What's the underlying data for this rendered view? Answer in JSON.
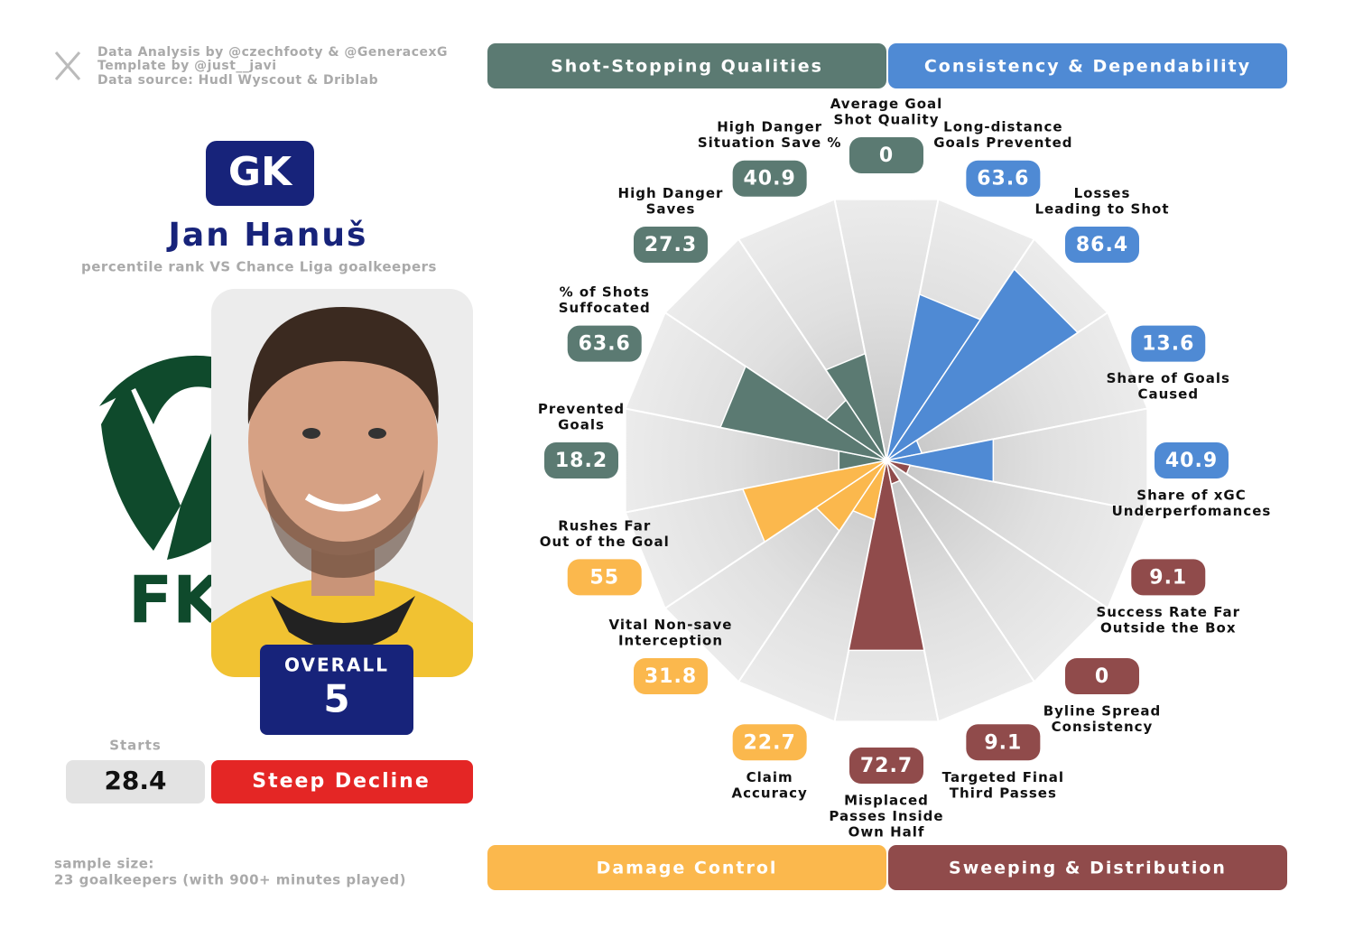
{
  "credits": [
    "Data Analysis by @czechfooty & @GeneracexG",
    "Template by @just__javi",
    "Data source: Hudl Wyscout & Driblab"
  ],
  "player": {
    "position": "GK",
    "name": "Jan Hanuš",
    "subtitle": "percentile rank VS Chance Liga goalkeepers",
    "team_logo": "FK",
    "overall_label": "OVERALL",
    "overall": 5,
    "starts_label": "Starts",
    "starts": 28.4,
    "trend": "Steep Decline"
  },
  "sample": [
    "sample size:",
    "23 goalkeepers (with 900+ minutes played)"
  ],
  "chart_data": {
    "type": "pizza",
    "groups": [
      {
        "name": "Shot-Stopping Qualities",
        "color": "#5b7a72"
      },
      {
        "name": "Consistency & Dependability",
        "color": "#4f8ad4"
      },
      {
        "name": "Damage Control",
        "color": "#fbb84d"
      },
      {
        "name": "Sweeping & Distribution",
        "color": "#904b4b"
      }
    ],
    "categories": [
      [
        "Average Goal",
        "Shot Quality"
      ],
      [
        "Long-distance",
        "Goals Prevented"
      ],
      [
        "Losses",
        "Leading to Shot"
      ],
      [
        "Share of Goals",
        "Caused"
      ],
      [
        "Share of xGC",
        "Underperfomances"
      ],
      [
        "Success Rate Far",
        "Outside the Box"
      ],
      [
        "Byline Spread",
        "Consistency"
      ],
      [
        "Targeted Final",
        "Third Passes"
      ],
      [
        "Misplaced",
        "Passes Inside",
        "Own Half"
      ],
      [
        "Claim",
        "Accuracy"
      ],
      [
        "Vital Non-save",
        "Interception"
      ],
      [
        "Rushes Far",
        "Out of the Goal"
      ],
      [
        "Prevented",
        "Goals"
      ],
      [
        "% of Shots",
        "Suffocated"
      ],
      [
        "High Danger",
        "Saves"
      ],
      [
        "High Danger",
        "Situation Save %"
      ]
    ],
    "values": [
      0,
      63.6,
      86.4,
      13.6,
      40.9,
      9.1,
      0,
      9.1,
      72.7,
      22.7,
      31.8,
      55,
      18.2,
      63.6,
      27.3,
      40.9
    ],
    "colors": [
      "#5b7a72",
      "#4f8ad4",
      "#4f8ad4",
      "#4f8ad4",
      "#4f8ad4",
      "#904b4b",
      "#904b4b",
      "#904b4b",
      "#904b4b",
      "#fbb84d",
      "#fbb84d",
      "#fbb84d",
      "#5b7a72",
      "#5b7a72",
      "#5b7a72",
      "#5b7a72"
    ],
    "rlim": [
      0,
      100
    ]
  }
}
